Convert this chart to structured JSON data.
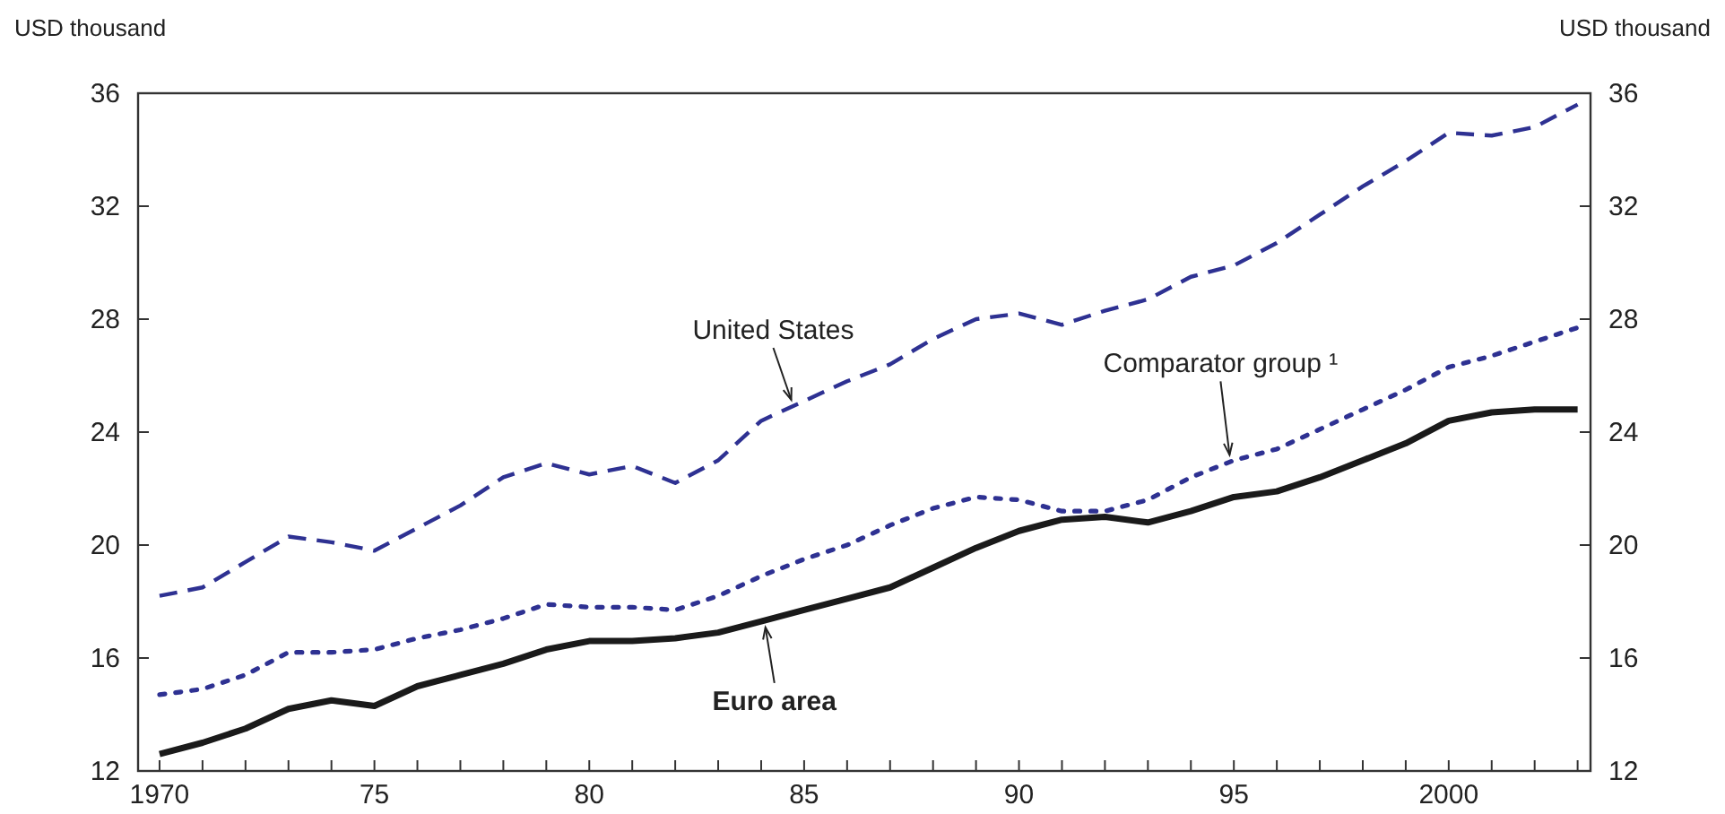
{
  "chart_data": {
    "type": "line",
    "ylabel": "USD thousand",
    "y2label": "USD thousand",
    "x": [
      1970,
      1971,
      1972,
      1973,
      1974,
      1975,
      1976,
      1977,
      1978,
      1979,
      1980,
      1981,
      1982,
      1983,
      1984,
      1985,
      1986,
      1987,
      1988,
      1989,
      1990,
      1991,
      1992,
      1993,
      1994,
      1995,
      1996,
      1997,
      1998,
      1999,
      2000,
      2001,
      2002,
      2003
    ],
    "xlim": [
      1969.5,
      2003.3
    ],
    "xticks": [
      {
        "value": 1970,
        "label": "1970"
      },
      {
        "value": 1971,
        "label": null
      },
      {
        "value": 1972,
        "label": null
      },
      {
        "value": 1973,
        "label": null
      },
      {
        "value": 1974,
        "label": null
      },
      {
        "value": 1975,
        "label": "75"
      },
      {
        "value": 1976,
        "label": null
      },
      {
        "value": 1977,
        "label": null
      },
      {
        "value": 1978,
        "label": null
      },
      {
        "value": 1979,
        "label": null
      },
      {
        "value": 1980,
        "label": "80"
      },
      {
        "value": 1981,
        "label": null
      },
      {
        "value": 1982,
        "label": null
      },
      {
        "value": 1983,
        "label": null
      },
      {
        "value": 1984,
        "label": null
      },
      {
        "value": 1985,
        "label": "85"
      },
      {
        "value": 1986,
        "label": null
      },
      {
        "value": 1987,
        "label": null
      },
      {
        "value": 1988,
        "label": null
      },
      {
        "value": 1989,
        "label": null
      },
      {
        "value": 1990,
        "label": "90"
      },
      {
        "value": 1991,
        "label": null
      },
      {
        "value": 1992,
        "label": null
      },
      {
        "value": 1993,
        "label": null
      },
      {
        "value": 1994,
        "label": null
      },
      {
        "value": 1995,
        "label": "95"
      },
      {
        "value": 1996,
        "label": null
      },
      {
        "value": 1997,
        "label": null
      },
      {
        "value": 1998,
        "label": null
      },
      {
        "value": 1999,
        "label": null
      },
      {
        "value": 2000,
        "label": "2000"
      },
      {
        "value": 2001,
        "label": null
      },
      {
        "value": 2002,
        "label": null
      },
      {
        "value": 2003,
        "label": null
      }
    ],
    "ylim": [
      12,
      36
    ],
    "yticks": [
      12,
      16,
      20,
      24,
      28,
      32,
      36
    ],
    "y2lim": [
      12,
      36
    ],
    "y2ticks": [
      12,
      16,
      20,
      24,
      28,
      32,
      36
    ],
    "grid": false,
    "series": [
      {
        "name": "United States",
        "color": "#2e3192",
        "line_style": "dashed",
        "values": [
          18.2,
          18.5,
          19.4,
          20.3,
          20.1,
          19.8,
          20.6,
          21.4,
          22.4,
          22.9,
          22.5,
          22.8,
          22.2,
          23.0,
          24.4,
          25.1,
          25.8,
          26.4,
          27.3,
          28.0,
          28.2,
          27.8,
          28.3,
          28.7,
          29.5,
          29.9,
          30.7,
          31.7,
          32.7,
          33.6,
          34.6,
          34.5,
          34.8,
          35.6
        ]
      },
      {
        "name": "Comparator group ¹",
        "color": "#2e3192",
        "line_style": "dotted",
        "values": [
          14.7,
          14.9,
          15.4,
          16.2,
          16.2,
          16.3,
          16.7,
          17.0,
          17.4,
          17.9,
          17.8,
          17.8,
          17.7,
          18.2,
          18.9,
          19.5,
          20.0,
          20.7,
          21.3,
          21.7,
          21.6,
          21.2,
          21.2,
          21.6,
          22.4,
          23.0,
          23.4,
          24.1,
          24.8,
          25.5,
          26.3,
          26.7,
          27.2,
          27.7
        ]
      },
      {
        "name": "Euro area",
        "color": "#1a1a1a",
        "line_style": "solid",
        "values": [
          12.6,
          13.0,
          13.5,
          14.2,
          14.5,
          14.3,
          15.0,
          15.4,
          15.8,
          16.3,
          16.6,
          16.6,
          16.7,
          16.9,
          17.3,
          17.7,
          18.1,
          18.5,
          19.2,
          19.9,
          20.5,
          20.9,
          21.0,
          20.8,
          21.2,
          21.7,
          21.9,
          22.4,
          23.0,
          23.6,
          24.4,
          24.7,
          24.8,
          24.8
        ]
      }
    ]
  }
}
